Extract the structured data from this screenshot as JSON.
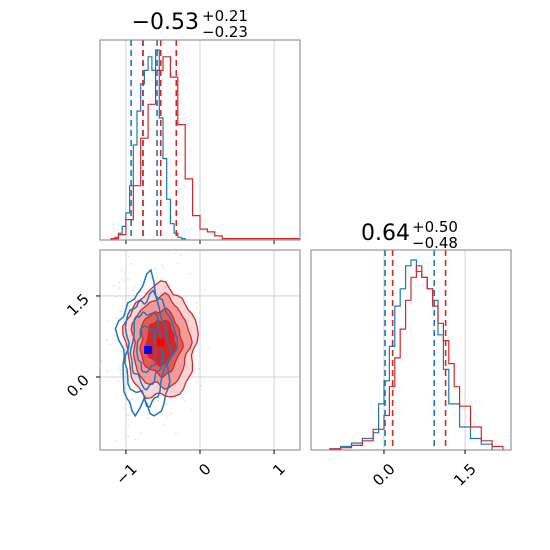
{
  "chart_data": [
    {
      "type": "histogram",
      "panel": "marginal-param-1",
      "title_main": "−0.53",
      "title_sup": "+0.21",
      "title_sub": "−0.23",
      "xlim": [
        -1.35,
        1.35
      ],
      "grid": true,
      "series": [
        {
          "name": "",
          "color": "#1f77b4",
          "bin_edges": [
            -1.2,
            -1.15,
            -1.1,
            -1.05,
            -1.0,
            -0.95,
            -0.9,
            -0.85,
            -0.8,
            -0.75,
            -0.7,
            -0.65,
            -0.6,
            -0.55,
            -0.5,
            -0.45,
            -0.4,
            -0.35,
            -0.3,
            -0.25,
            -0.2
          ],
          "counts": [
            1,
            2,
            5,
            10,
            20,
            40,
            70,
            95,
            115,
            125,
            135,
            125,
            140,
            90,
            60,
            30,
            12,
            5,
            2,
            1
          ],
          "quantile_lines": [
            -0.93,
            -0.77,
            -0.58
          ]
        },
        {
          "name": "",
          "color": "#d62728",
          "bin_edges": [
            -1.2,
            -1.1,
            -1.0,
            -0.9,
            -0.8,
            -0.7,
            -0.6,
            -0.5,
            -0.4,
            -0.3,
            -0.2,
            -0.1,
            0.0,
            0.1,
            0.2,
            0.3,
            0.4,
            0.6,
            0.8,
            1.0,
            1.2,
            1.35
          ],
          "counts": [
            1,
            4,
            15,
            40,
            75,
            100,
            125,
            135,
            120,
            85,
            45,
            18,
            8,
            6,
            3,
            1,
            1,
            1,
            1,
            1,
            1
          ],
          "quantile_lines": [
            -0.77,
            -0.53,
            -0.32
          ]
        }
      ]
    },
    {
      "type": "contour",
      "panel": "joint-param-1-param-2",
      "xlim": [
        -1.35,
        1.35
      ],
      "ylim": [
        -1.35,
        2.35
      ],
      "xticks": [
        "−1",
        "0",
        "1"
      ],
      "yticks": [
        "0.0",
        "1.5"
      ],
      "grid": true,
      "series": [
        {
          "name": "",
          "color": "#1f77b4",
          "center": [
            -0.72,
            0.52
          ],
          "spread": [
            0.18,
            0.6
          ],
          "filled": false
        },
        {
          "name": "",
          "color": "#d62728",
          "center": [
            -0.53,
            0.64
          ],
          "spread": [
            0.24,
            0.52
          ],
          "filled": true
        }
      ],
      "markers": [
        {
          "color": "#0000ff",
          "x": -0.7,
          "y": 0.5
        },
        {
          "color": "#ff0000",
          "x": -0.53,
          "y": 0.64
        }
      ]
    },
    {
      "type": "histogram",
      "panel": "marginal-param-2",
      "title_main": "0.64",
      "title_sup": "+0.50",
      "title_sub": "−0.48",
      "xlim": [
        -1.35,
        2.35
      ],
      "xticks": [
        "0.0",
        "1.5"
      ],
      "grid": true,
      "series": [
        {
          "name": "",
          "color": "#1f77b4",
          "bin_edges": [
            -1.0,
            -0.8,
            -0.6,
            -0.4,
            -0.2,
            -0.1,
            0.0,
            0.1,
            0.2,
            0.3,
            0.4,
            0.5,
            0.6,
            0.7,
            0.8,
            0.9,
            1.0,
            1.1,
            1.2,
            1.4,
            1.6,
            1.8,
            2.0
          ],
          "counts": [
            1,
            3,
            6,
            10,
            15,
            40,
            60,
            90,
            125,
            140,
            160,
            165,
            155,
            150,
            140,
            130,
            100,
            70,
            40,
            20,
            10,
            5
          ],
          "quantile_lines": [
            0.02,
            0.93
          ]
        },
        {
          "name": "",
          "color": "#d62728",
          "bin_edges": [
            -1.0,
            -0.8,
            -0.6,
            -0.4,
            -0.2,
            0.0,
            0.1,
            0.2,
            0.3,
            0.4,
            0.5,
            0.6,
            0.7,
            0.8,
            0.9,
            1.0,
            1.1,
            1.2,
            1.3,
            1.4,
            1.6,
            1.8,
            2.0,
            2.2
          ],
          "counts": [
            1,
            2,
            4,
            8,
            18,
            30,
            55,
            80,
            105,
            130,
            150,
            160,
            150,
            140,
            125,
            110,
            95,
            75,
            55,
            38,
            20,
            8,
            3
          ],
          "quantile_lines": [
            0.16,
            1.14
          ]
        }
      ]
    }
  ]
}
